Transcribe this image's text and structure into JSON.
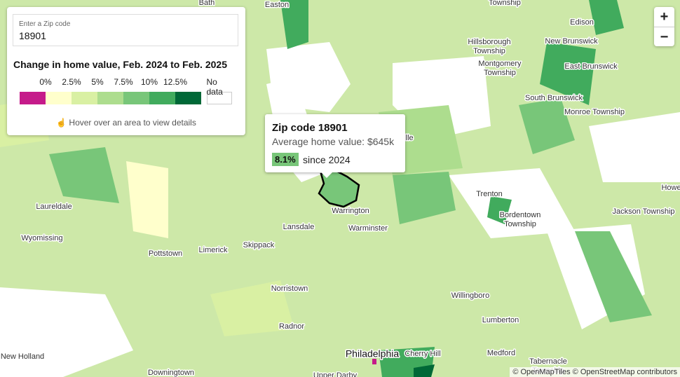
{
  "search": {
    "label": "Enter a Zip code",
    "value": "18901"
  },
  "legend": {
    "title": "Change in home value, Feb. 2024 to Feb. 2025",
    "colors": [
      "#c51b8a",
      "#ffffcc",
      "#d9f0a3",
      "#addd8e",
      "#78c679",
      "#41ab5d",
      "#006837",
      "#ffffff"
    ],
    "labels": [
      "0%",
      "2.5%",
      "5%",
      "7.5%",
      "10%",
      "12.5%",
      "No data"
    ],
    "hint": "Hover over an area to view details"
  },
  "tooltip": {
    "title": "Zip code 18901",
    "subtitle": "Average home value: $645k",
    "change": "8.1%",
    "since": "since 2024"
  },
  "places": [
    [
      "Bath"
    ],
    [
      "Easton"
    ],
    [
      "Township"
    ],
    [
      "Edison"
    ],
    [
      "Hillsborough",
      "Township"
    ],
    [
      "New Brunswick"
    ],
    [
      "Montgomery",
      "Township"
    ],
    [
      "East Brunswick"
    ],
    [
      "South Brunswick"
    ],
    [
      "Monroe Township"
    ],
    [
      "Lambertville"
    ],
    [
      "Trenton"
    ],
    [
      "Bordentown",
      "Township"
    ],
    [
      "Howell"
    ],
    [
      "Jackson Township"
    ],
    [
      "Laureldale"
    ],
    [
      "Wyomissing"
    ],
    [
      "Lansdale"
    ],
    [
      "Warrington"
    ],
    [
      "Warminster"
    ],
    [
      "Pottstown"
    ],
    [
      "Limerick"
    ],
    [
      "Skippack"
    ],
    [
      "Norristown"
    ],
    [
      "Willingboro"
    ],
    [
      "Radnor"
    ],
    [
      "Lumberton"
    ],
    [
      "Philadelphia"
    ],
    [
      "Cherry Hill"
    ],
    [
      "Medford"
    ],
    [
      "Tabernacle",
      "Township"
    ],
    [
      "New Holland"
    ],
    [
      "Downingtown"
    ],
    [
      "Upper Darby"
    ]
  ],
  "zoom": {
    "in": "+",
    "out": "−"
  },
  "attribution": "© OpenMapTiles © OpenStreetMap contributors"
}
